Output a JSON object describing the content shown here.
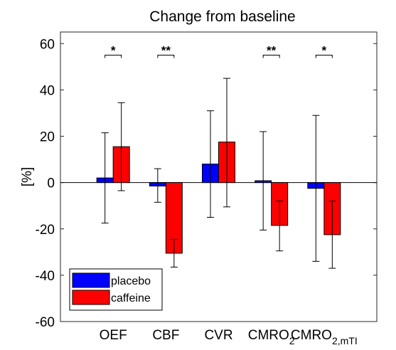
{
  "chart_data": {
    "type": "bar",
    "title": "Change from baseline",
    "ylabel": "[%]",
    "xlabel": "",
    "ylim": [
      -60,
      65
    ],
    "yticks": [
      -60,
      -40,
      -20,
      0,
      20,
      40,
      60
    ],
    "grid": false,
    "legend_position": "bottom-left",
    "categories": [
      {
        "label": "OEF",
        "sub": ""
      },
      {
        "label": "CBF",
        "sub": ""
      },
      {
        "label": "CVR",
        "sub": ""
      },
      {
        "label": "CMRO",
        "sub": "2"
      },
      {
        "label": "CMRO",
        "sub": "2,mTI"
      }
    ],
    "series": [
      {
        "name": "placebo",
        "color": "#0000ff",
        "values": [
          2,
          -1.5,
          8,
          0.8,
          -2.5
        ],
        "err_low": [
          -17.5,
          -8.5,
          -15,
          -20.5,
          -34
        ],
        "err_high": [
          21.5,
          6,
          31,
          22,
          29
        ]
      },
      {
        "name": "caffeine",
        "color": "#ff0000",
        "values": [
          15.5,
          -30.5,
          17.5,
          -18.5,
          -22.5
        ],
        "err_low": [
          -3.5,
          -36.5,
          -10.5,
          -29.5,
          -37
        ],
        "err_high": [
          34.5,
          -24.5,
          45,
          -8,
          -8
        ]
      }
    ],
    "significance": [
      "*",
      "**",
      "",
      "**",
      "*"
    ],
    "sig_y": 55
  }
}
